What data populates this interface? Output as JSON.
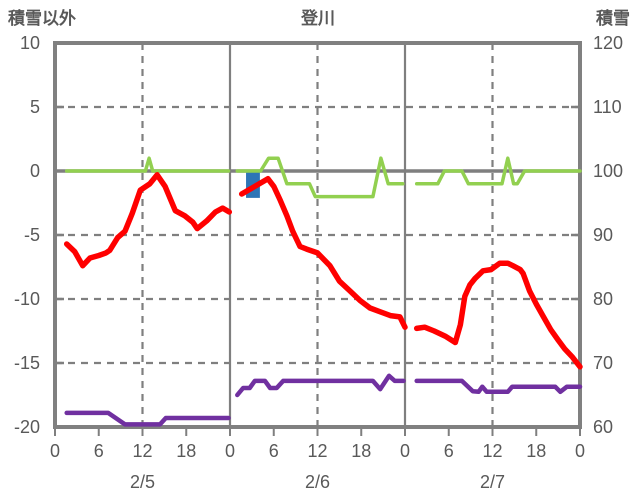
{
  "header": {
    "left_axis_title": "積雪以外",
    "chart_title": "登川",
    "right_axis_title": "積雪"
  },
  "chart_data": {
    "type": "line",
    "title": "登川",
    "left_axis": {
      "title": "積雪以外",
      "min": -20,
      "max": 10,
      "ticks": [
        10,
        5,
        0,
        -5,
        -10,
        -15,
        -20
      ]
    },
    "right_axis": {
      "title": "積雪",
      "min": 60,
      "max": 120,
      "ticks": [
        120,
        110,
        100,
        90,
        80,
        70,
        60
      ]
    },
    "x_axis": {
      "total_hours": 72,
      "hours_per_day": 24,
      "hour_labels": [
        "0",
        "6",
        "12",
        "18"
      ],
      "end_label": "0",
      "date_labels": [
        "2/5",
        "2/6",
        "2/7"
      ],
      "tick_step": 6
    },
    "grid": {
      "h_dashed_values": [
        5,
        -5,
        -10,
        -15
      ],
      "h_solid_values": [
        0
      ],
      "v_solid_hours": [
        24,
        48
      ],
      "v_dashed_hours": [
        12,
        36,
        60
      ],
      "side_tick_values": [
        5,
        0,
        -5,
        -10,
        -15
      ]
    },
    "colors": {
      "frame": "#808080",
      "grid": "#7F7F7F",
      "text": "#595959"
    },
    "bar": {
      "name": "event-bar",
      "axis": "left",
      "color": "#2E75B6",
      "from_hour": 26.2,
      "to_hour": 28.1,
      "top": 0,
      "bottom": -2.1
    },
    "series": [
      {
        "name": "green-line",
        "axis": "left",
        "color": "#92D050",
        "width": 3.5,
        "segments": [
          [
            [
              1.6,
              0
            ],
            [
              12.4,
              0
            ],
            [
              12.9,
              1
            ],
            [
              13.4,
              0
            ],
            [
              23.8,
              0
            ]
          ],
          [
            [
              25,
              0
            ],
            [
              28.2,
              0
            ],
            [
              29.3,
              1
            ],
            [
              30.6,
              1
            ],
            [
              31.8,
              -1
            ],
            [
              34.9,
              -1
            ],
            [
              35.7,
              -2
            ],
            [
              43.6,
              -2
            ],
            [
              44.7,
              1
            ],
            [
              45.7,
              -1
            ],
            [
              47.7,
              -1
            ]
          ],
          [
            [
              49.6,
              -1
            ],
            [
              52.5,
              -1
            ],
            [
              53.4,
              0
            ],
            [
              55.8,
              0
            ],
            [
              56.7,
              -1
            ],
            [
              61.3,
              -1
            ],
            [
              62.1,
              1
            ],
            [
              62.9,
              -1
            ],
            [
              63.4,
              -1
            ],
            [
              64.4,
              0
            ],
            [
              72,
              0
            ]
          ]
        ]
      },
      {
        "name": "snow-depth-purple",
        "axis": "right",
        "color": "#7030A0",
        "width": 4.5,
        "segments": [
          [
            [
              1.6,
              62.2
            ],
            [
              7.3,
              62.2
            ],
            [
              9.6,
              60.4
            ],
            [
              14.4,
              60.4
            ],
            [
              15.2,
              61.4
            ],
            [
              23.8,
              61.4
            ]
          ],
          [
            [
              25,
              65
            ],
            [
              25.8,
              66.1
            ],
            [
              26.7,
              66.1
            ],
            [
              27.4,
              67.2
            ],
            [
              28.8,
              67.2
            ],
            [
              29.5,
              66.1
            ],
            [
              30.4,
              66.1
            ],
            [
              31.3,
              67.2
            ],
            [
              43.6,
              67.2
            ],
            [
              44.6,
              65.9
            ],
            [
              45.8,
              68
            ],
            [
              46.6,
              67.2
            ],
            [
              47.8,
              67.2
            ]
          ],
          [
            [
              49.6,
              67.2
            ],
            [
              55.8,
              67.2
            ],
            [
              57.3,
              65.6
            ],
            [
              58.1,
              65.5
            ],
            [
              58.6,
              66.3
            ],
            [
              59.2,
              65.5
            ],
            [
              62.1,
              65.5
            ],
            [
              62.7,
              66.3
            ],
            [
              68.6,
              66.3
            ],
            [
              69.3,
              65.5
            ],
            [
              70.2,
              66.3
            ],
            [
              72,
              66.3
            ]
          ]
        ]
      },
      {
        "name": "temperature-red",
        "axis": "left",
        "color": "#FF0000",
        "width": 5.5,
        "segments": [
          [
            [
              1.6,
              -5.7
            ],
            [
              2.7,
              -6.3
            ],
            [
              3.8,
              -7.4
            ],
            [
              4.8,
              -6.8
            ],
            [
              6,
              -6.6
            ],
            [
              7,
              -6.4
            ],
            [
              7.5,
              -6.2
            ],
            [
              8.6,
              -5.2
            ],
            [
              9.6,
              -4.7
            ],
            [
              10.6,
              -3.3
            ],
            [
              11.7,
              -1.5
            ],
            [
              13,
              -1.0
            ],
            [
              14,
              -0.3
            ],
            [
              15.1,
              -1.2
            ],
            [
              16.5,
              -3.1
            ],
            [
              17.8,
              -3.5
            ],
            [
              18.9,
              -4.0
            ],
            [
              19.5,
              -4.5
            ],
            [
              20.8,
              -3.9
            ],
            [
              22,
              -3.2
            ],
            [
              23,
              -2.9
            ],
            [
              23.9,
              -3.2
            ]
          ],
          [
            [
              25.6,
              -1.8
            ],
            [
              26.5,
              -1.5
            ],
            [
              27.7,
              -1.1
            ],
            [
              29.2,
              -0.6
            ],
            [
              30,
              -1.2
            ],
            [
              30.9,
              -2.3
            ],
            [
              31.8,
              -3.5
            ],
            [
              32.6,
              -4.7
            ],
            [
              33.6,
              -5.9
            ],
            [
              34.5,
              -6.1
            ],
            [
              36,
              -6.4
            ],
            [
              37.7,
              -7.4
            ],
            [
              39,
              -8.6
            ],
            [
              40.5,
              -9.4
            ],
            [
              41.8,
              -10.1
            ],
            [
              43.2,
              -10.7
            ],
            [
              44.6,
              -11.0
            ],
            [
              46,
              -11.3
            ],
            [
              47.3,
              -11.4
            ],
            [
              48,
              -12.2
            ]
          ],
          [
            [
              49.6,
              -12.3
            ],
            [
              50.7,
              -12.2
            ],
            [
              52,
              -12.5
            ],
            [
              53.5,
              -12.9
            ],
            [
              54.9,
              -13.4
            ],
            [
              55.6,
              -12.0
            ],
            [
              56.2,
              -9.8
            ],
            [
              56.9,
              -8.9
            ],
            [
              57.6,
              -8.4
            ],
            [
              58.7,
              -7.8
            ],
            [
              59.8,
              -7.7
            ],
            [
              61,
              -7.2
            ],
            [
              62.1,
              -7.2
            ],
            [
              62.8,
              -7.4
            ],
            [
              63.8,
              -7.7
            ],
            [
              64.2,
              -8.0
            ],
            [
              65.1,
              -9.4
            ],
            [
              66,
              -10.4
            ],
            [
              67,
              -11.4
            ],
            [
              68,
              -12.4
            ],
            [
              69,
              -13.2
            ],
            [
              69.9,
              -13.9
            ],
            [
              70.9,
              -14.5
            ],
            [
              72,
              -15.3
            ]
          ]
        ]
      }
    ]
  }
}
